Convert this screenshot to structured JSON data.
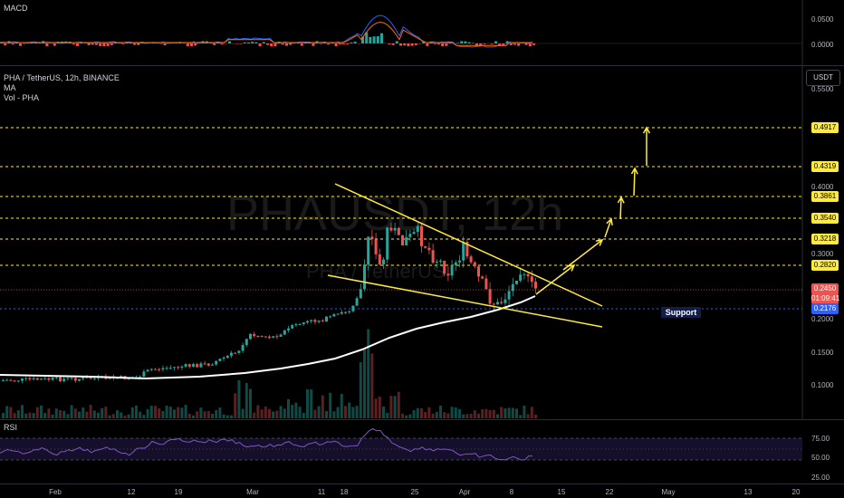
{
  "symbol_line": "PHA / TetherUS, 12h, BINANCE",
  "indicators": {
    "ma": "MA",
    "volume": "Vol - PHA",
    "macd": "MACD",
    "rsi": "RSI"
  },
  "watermark": {
    "ticker": "PHAUSDT, 12h",
    "name": "PHA / TetherUS"
  },
  "currency": "USDT",
  "annotations": {
    "support": "Support"
  },
  "price_axis": {
    "ticks": [
      "0.5500",
      "0.4500",
      "0.4000",
      "0.3500",
      "0.3000",
      "0.2500",
      "0.2000",
      "0.1500",
      "0.1000"
    ],
    "levels": [
      "0.4917",
      "0.4319",
      "0.3861",
      "0.3540",
      "0.3218",
      "0.2820"
    ],
    "current_price": "0.2450",
    "countdown": "01:09:41",
    "support_price": "0.2176"
  },
  "macd_axis": [
    "0.0500",
    "0.0000"
  ],
  "rsi_axis": [
    "75.00",
    "50.00",
    "25.00"
  ],
  "time_axis": [
    "Feb",
    "12",
    "19",
    "Mar",
    "11",
    "18",
    "25",
    "Apr",
    "8",
    "15",
    "22",
    "May",
    "13",
    "20"
  ],
  "colors": {
    "up": "#26a69a",
    "down": "#ef5350",
    "level": "#ffeb3b",
    "ma": "#ffffff",
    "rsi": "#7e57c2",
    "macd": "#2962ff",
    "signal": "#ff6d00"
  }
}
